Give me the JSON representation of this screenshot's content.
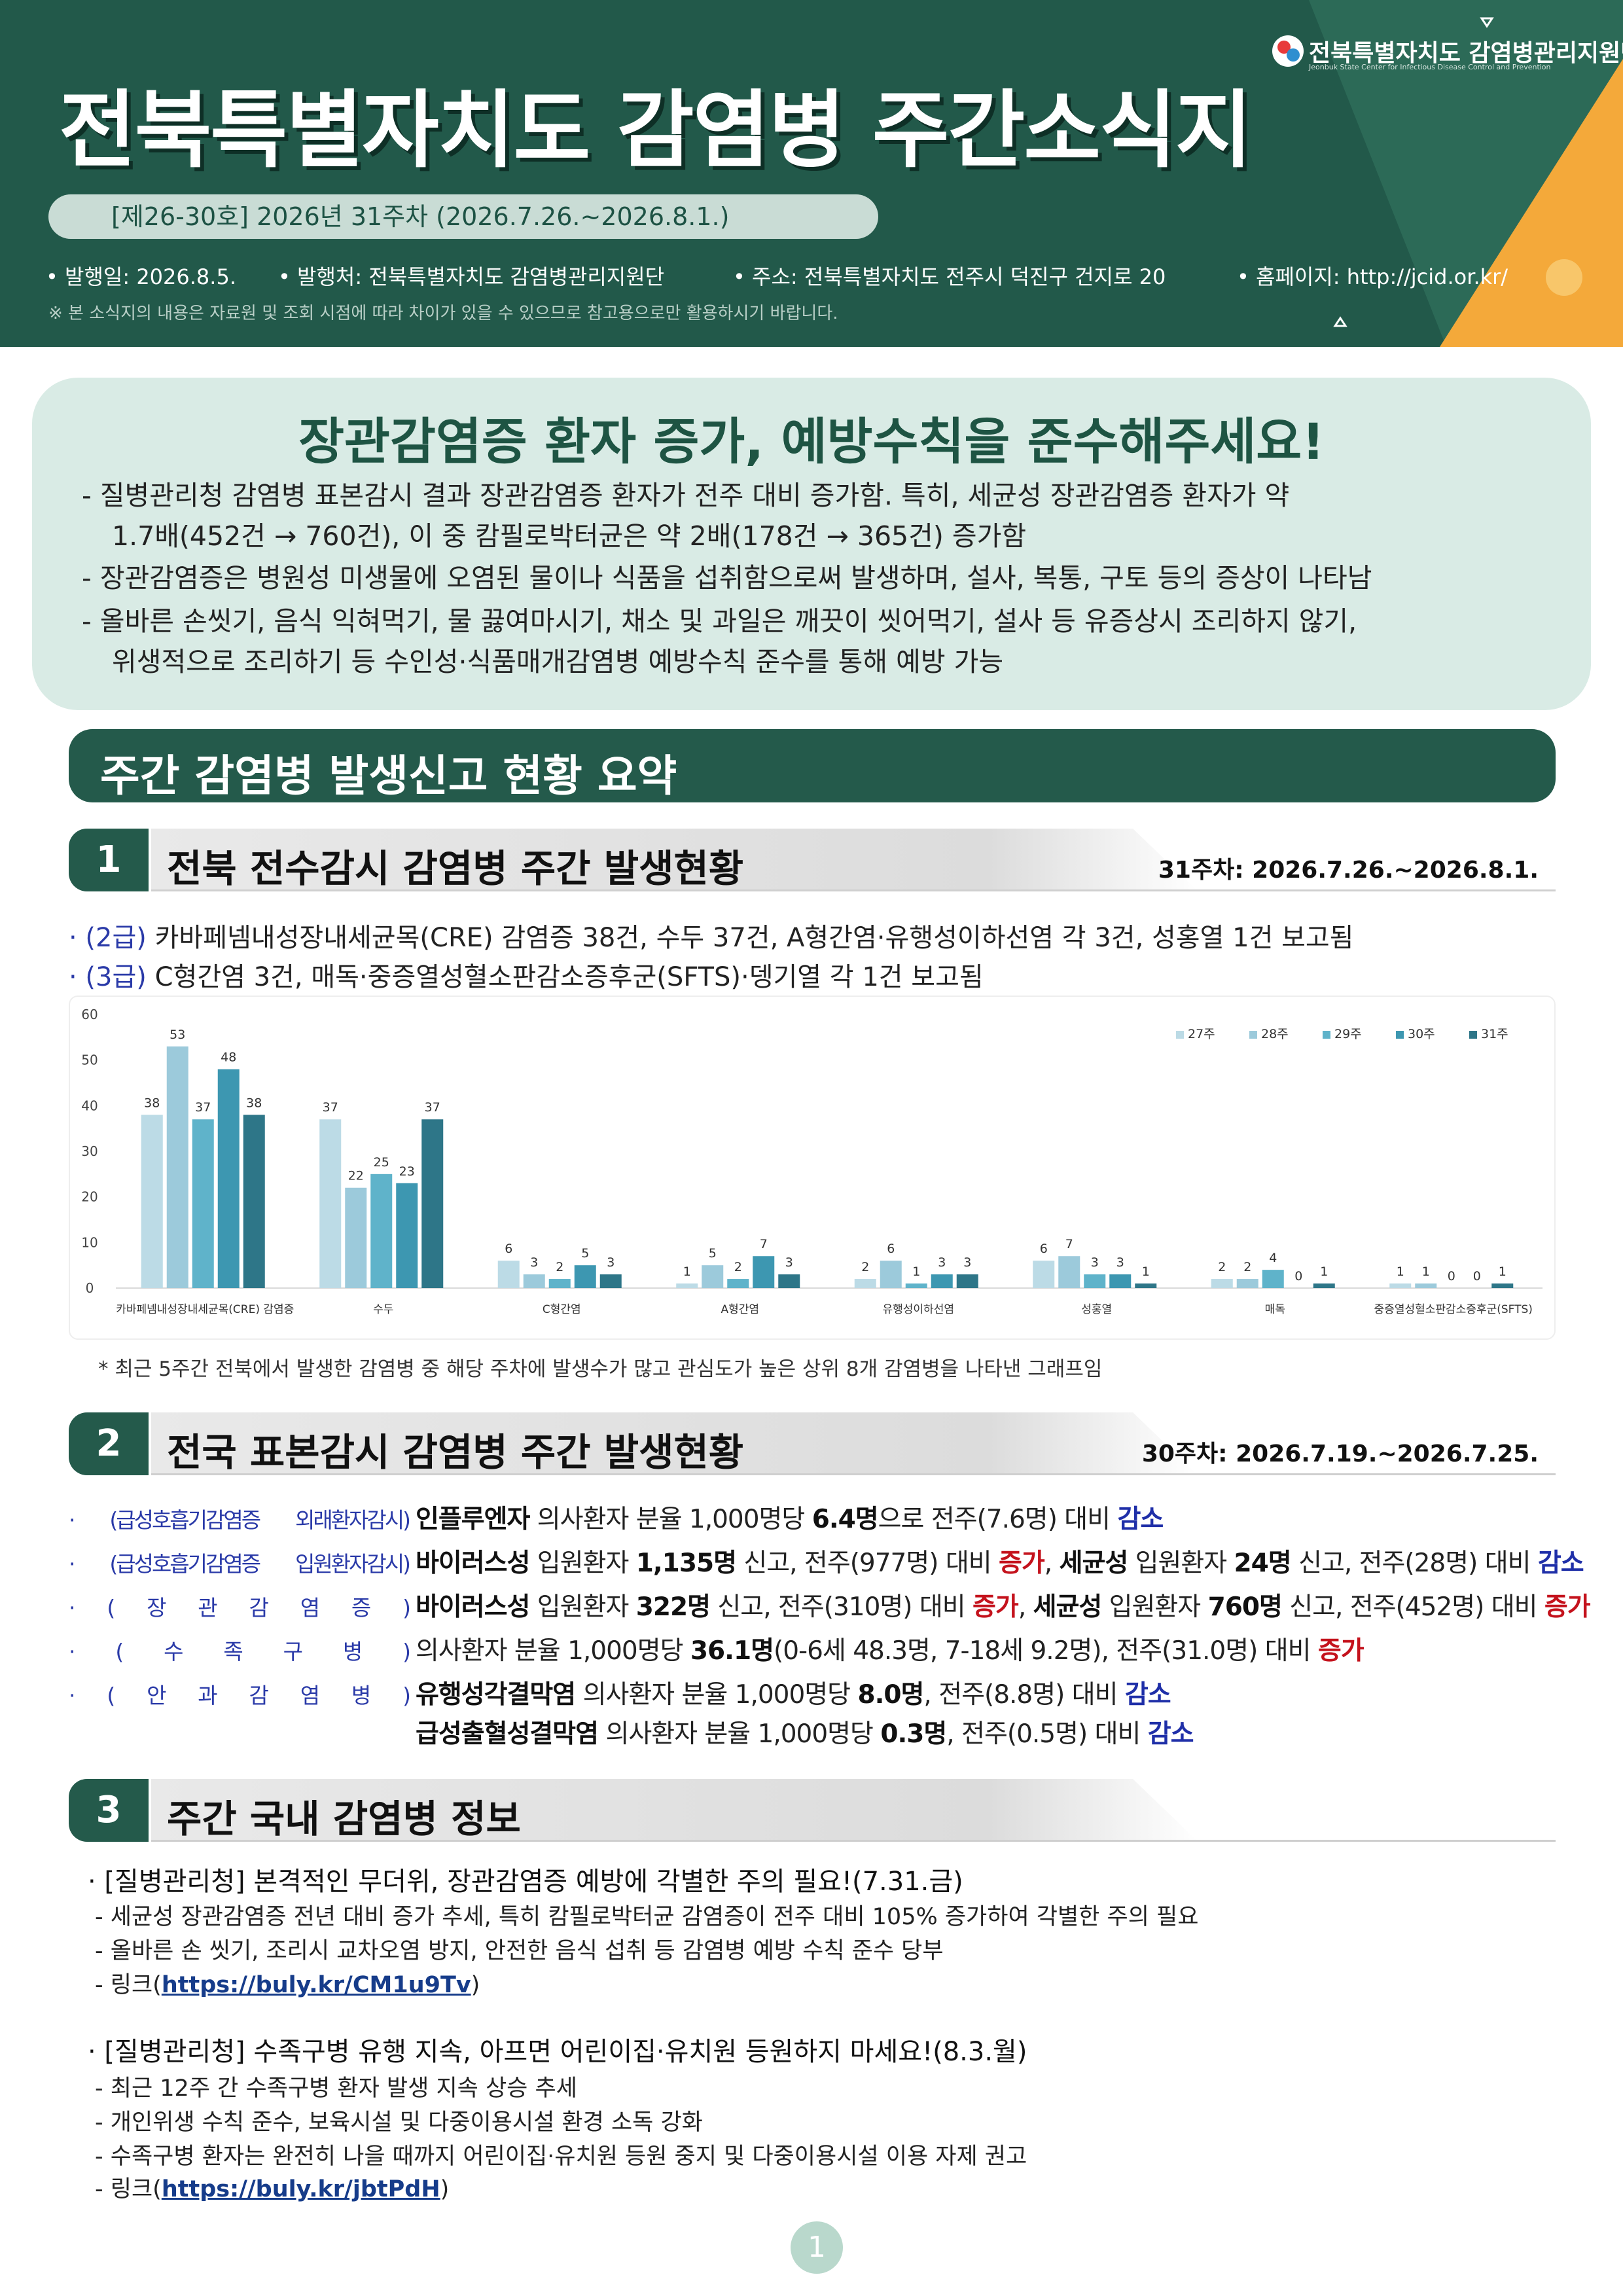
{
  "header": {
    "title": "전북특별자치도  감염병  주간소식지",
    "issue": "[제26-30호] 2026년 31주차 (2026.7.26.~2026.8.1.)",
    "info": [
      "• 발행일: 2026.8.5.",
      "• 발행처: 전북특별자치도 감염병관리지원단",
      "• 주소: 전북특별자치도 전주시 덕진구 건지로 20",
      "• 홈페이지: http://jcid.or.kr/"
    ],
    "note": "※ 본 소식지의 내용은 자료원 및 조회 시점에 따라 차이가 있을 수 있으므로 참고용으로만 활용하시기 바랍니다.",
    "logo": "전북특별자치도 감염병관리지원단",
    "logo_sub": "Jeonbuk State Center for Infectious Disease Control and Prevention"
  },
  "summary": {
    "title": "장관감염증 환자 증가, 예방수칙을 준수해주세요!",
    "lines": [
      "- 질병관리청 감염병 표본감시 결과 장관감염증 환자가 전주 대비 증가함. 특히, 세균성 장관감염증 환자가 약",
      "1.7배(452건 → 760건), 이 중 캄필로박터균은 약 2배(178건 → 365건) 증가함",
      "- 장관감염증은 병원성 미생물에 오염된 물이나 식품을 섭취함으로써 발생하며, 설사, 복통, 구토 등의 증상이 나타남",
      "- 올바른 손씻기, 음식 익혀먹기, 물 끓여마시기, 채소 및 과일은 깨끗이 씻어먹기, 설사 등 유증상시 조리하지 않기,",
      "위생적으로 조리하기 등 수인성·식품매개감염병 예방수칙 준수를 통해 예방 가능"
    ]
  },
  "banner": "주간 감염병 발생신고 현황 요약",
  "section1": {
    "number": "1",
    "title": "전북 전수감시 감염병 주간 발생현황",
    "period": "31주차: 2026.7.26.~2026.8.1.",
    "lines": [
      {
        "label": "· (2급)",
        "text": "카바페넴내성장내세균목(CRE) 감염증 38건, 수두 37건, A형간염·유행성이하선염 각 3건, 성홍열 1건 보고됨"
      },
      {
        "label": "· (3급)",
        "text": "C형간염 3건, 매독·중증열성혈소판감소증후군(SFTS)·뎅기열 각 1건 보고됨"
      }
    ],
    "note": "* 최근 5주간 전북에서 발생한 감염병 중 해당 주차에 발생수가 많고 관심도가 높은 상위 8개 감염병을 나타낸 그래프임"
  },
  "chart_data": {
    "type": "bar",
    "categories": [
      "카바페넴내성장내세균목(CRE) 감염증",
      "수두",
      "C형간염",
      "A형간염",
      "유행성이하선염",
      "성홍열",
      "매독",
      "중증열성혈소판감소증후군(SFTS)"
    ],
    "series": [
      {
        "name": "27주",
        "color": "#bcdbe6",
        "values": [
          38,
          37,
          6,
          1,
          2,
          6,
          2,
          1
        ]
      },
      {
        "name": "28주",
        "color": "#9ccadb",
        "values": [
          53,
          22,
          3,
          5,
          6,
          7,
          2,
          1
        ]
      },
      {
        "name": "29주",
        "color": "#5fb3ca",
        "values": [
          37,
          25,
          2,
          2,
          1,
          3,
          4,
          0
        ]
      },
      {
        "name": "30주",
        "color": "#3d97b1",
        "values": [
          48,
          23,
          5,
          7,
          3,
          3,
          0,
          0
        ]
      },
      {
        "name": "31주",
        "color": "#2e7688",
        "values": [
          38,
          37,
          3,
          3,
          3,
          1,
          1,
          1
        ]
      }
    ],
    "ylim": [
      0,
      60
    ],
    "yticks": [
      0,
      10,
      20,
      30,
      40,
      50,
      60
    ],
    "legend": "top-right",
    "grid": false
  },
  "section2": {
    "number": "2",
    "title": "전국 표본감시 감염병 주간 발생현황",
    "period": "30주차: 2026.7.19.~2026.7.25.",
    "lines": [
      {
        "label": "· (급성호흡기감염증 외래환자감시)",
        "parts": [
          {
            "text": "인플루엔자",
            "style": "bold"
          },
          " 의사환자 분율 1,000명당 ",
          {
            "text": "6.4명",
            "style": "bold"
          },
          "으로 전주(7.6명) 대비 ",
          {
            "text": "감소",
            "style": "blue"
          }
        ]
      },
      {
        "label": "· (급성호흡기감염증 입원환자감시)",
        "parts": [
          {
            "text": "바이러스성",
            "style": "bold"
          },
          " 입원환자 ",
          {
            "text": "1,135명",
            "style": "bold"
          },
          " 신고, 전주(977명) 대비 ",
          {
            "text": "증가",
            "style": "red"
          },
          ", ",
          {
            "text": "세균성",
            "style": "bold"
          },
          " 입원환자 ",
          {
            "text": "24명",
            "style": "bold"
          },
          " 신고, 전주(28명) 대비 ",
          {
            "text": "감소",
            "style": "blue"
          }
        ]
      },
      {
        "label": "· ( 장 관 감 염 증 )",
        "parts": [
          {
            "text": "바이러스성",
            "style": "bold"
          },
          " 입원환자 ",
          {
            "text": "322명",
            "style": "bold"
          },
          " 신고, 전주(310명) 대비 ",
          {
            "text": "증가",
            "style": "red"
          },
          ", ",
          {
            "text": "세균성",
            "style": "bold"
          },
          " 입원환자 ",
          {
            "text": "760명",
            "style": "bold"
          },
          " 신고, 전주(452명) 대비 ",
          {
            "text": "증가",
            "style": "red"
          }
        ]
      },
      {
        "label": "· ( 수 족 구 병 )",
        "parts": [
          "의사환자 분율 1,000명당 ",
          {
            "text": "36.1명",
            "style": "bold"
          },
          "(0-6세 48.3명, 7-18세 9.2명), 전주(31.0명) 대비 ",
          {
            "text": "증가",
            "style": "red"
          }
        ]
      },
      {
        "label": "· ( 안 과 감 염 병 )",
        "parts": [
          {
            "text": "유행성각결막염",
            "style": "bold"
          },
          " 의사환자 분율 1,000명당 ",
          {
            "text": "8.0명",
            "style": "bold"
          },
          ", 전주(8.8명) 대비 ",
          {
            "text": "감소",
            "style": "blue"
          }
        ]
      },
      {
        "parts": [
          {
            "text": "급성출혈성결막염",
            "style": "bold"
          },
          " 의사환자 분율 1,000명당 ",
          {
            "text": "0.3명",
            "style": "bold"
          },
          ", 전주(0.5명) 대비 ",
          {
            "text": "감소",
            "style": "blue"
          }
        ]
      }
    ]
  },
  "section3": {
    "number": "3",
    "title": "주간 국내 감염병 정보",
    "items": [
      {
        "head": "· [질병관리청] 본격적인 무더위, 장관감염증 예방에 각별한 주의 필요!(7.31.금)",
        "subs": [
          "- 세균성 장관감염증 전년 대비 증가 추세, 특히 캄필로박터균 감염증이 전주 대비 105% 증가하여 각별한 주의 필요",
          "- 올바른 손 씻기, 조리시 교차오염 방지, 안전한 음식 섭취 등 감염병 예방 수칙 준수 당부"
        ],
        "link": {
          "before": "- 링크(",
          "url": "https://buly.kr/CM1u9Tv",
          "after": ")"
        }
      },
      {
        "head": "· [질병관리청] 수족구병 유행 지속, 아프면 어린이집·유치원 등원하지 마세요!(8.3.월)",
        "subs": [
          "-  최근 12주 간 수족구병 환자 발생 지속 상승 추세",
          "- 개인위생 수칙 준수, 보육시설 및 다중이용시설 환경 소독 강화",
          "- 수족구병 환자는 완전히 나을 때까지 어린이집·유치원 등원 중지 및 다중이용시설 이용 자제 권고"
        ],
        "link": {
          "before": "- 링크(",
          "url": "https://buly.kr/jbtPdH",
          "after": ")"
        }
      }
    ]
  },
  "page_number": "1"
}
